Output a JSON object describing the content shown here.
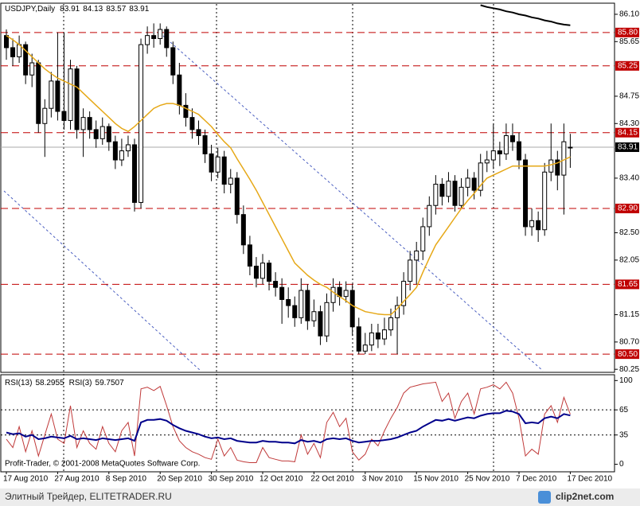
{
  "chart_data": [
    {
      "type": "candlestick",
      "title": "USDJPY,Daily",
      "categories": [
        "17 Aug 2010",
        null,
        null,
        null,
        null,
        null,
        null,
        null,
        "27 Aug 2010",
        null,
        null,
        null,
        null,
        null,
        null,
        null,
        "8 Sep 2010",
        null,
        null,
        null,
        null,
        null,
        null,
        null,
        "20 Sep 2010",
        null,
        null,
        null,
        null,
        null,
        null,
        null,
        "30 Sep 2010",
        null,
        null,
        null,
        null,
        null,
        null,
        null,
        "12 Oct 2010",
        null,
        null,
        null,
        null,
        null,
        null,
        null,
        "22 Oct 2010",
        null,
        null,
        null,
        null,
        null,
        null,
        null,
        "3 Nov 2010",
        null,
        null,
        null,
        null,
        null,
        null,
        null,
        "15 Nov 2010",
        null,
        null,
        null,
        null,
        null,
        null,
        null,
        "25 Nov 2010",
        null,
        null,
        null,
        null,
        null,
        null,
        null,
        "7 Dec 2010",
        null,
        null,
        null,
        null,
        null,
        null,
        null,
        "17 Dec 2010"
      ],
      "ohlc": [
        [
          85.75,
          85.85,
          85.35,
          85.55
        ],
        [
          85.55,
          85.7,
          85.25,
          85.4
        ],
        [
          85.4,
          85.75,
          85.3,
          85.6
        ],
        [
          85.6,
          85.65,
          84.95,
          85.1
        ],
        [
          85.1,
          85.45,
          84.9,
          85.3
        ],
        [
          85.3,
          85.35,
          84.15,
          84.3
        ],
        [
          84.3,
          84.7,
          83.75,
          84.55
        ],
        [
          84.55,
          85.15,
          84.4,
          85.0
        ],
        [
          85.0,
          85.8,
          84.35,
          84.5
        ],
        [
          84.5,
          85.8,
          84.2,
          84.35
        ],
        [
          84.35,
          85.35,
          84.2,
          85.2
        ],
        [
          85.2,
          85.25,
          84.05,
          84.2
        ],
        [
          84.2,
          84.55,
          83.75,
          84.4
        ],
        [
          84.4,
          84.5,
          84.05,
          84.2
        ],
        [
          84.2,
          84.35,
          83.9,
          84.05
        ],
        [
          84.05,
          84.4,
          83.95,
          84.25
        ],
        [
          84.25,
          84.3,
          83.85,
          84.0
        ],
        [
          84.0,
          84.1,
          83.55,
          83.7
        ],
        [
          83.7,
          84.05,
          83.6,
          83.85
        ],
        [
          83.85,
          84.1,
          83.75,
          83.95
        ],
        [
          83.95,
          84.05,
          82.85,
          83.0
        ],
        [
          83.0,
          85.7,
          82.9,
          85.6
        ],
        [
          85.6,
          85.9,
          85.45,
          85.75
        ],
        [
          85.75,
          85.95,
          85.55,
          85.7
        ],
        [
          85.7,
          85.95,
          85.6,
          85.85
        ],
        [
          85.85,
          85.9,
          85.4,
          85.55
        ],
        [
          85.55,
          85.65,
          84.95,
          85.1
        ],
        [
          85.1,
          85.3,
          84.45,
          84.6
        ],
        [
          84.6,
          84.8,
          84.25,
          84.4
        ],
        [
          84.4,
          84.55,
          84.05,
          84.2
        ],
        [
          84.2,
          84.35,
          83.95,
          84.1
        ],
        [
          84.1,
          84.2,
          83.65,
          83.8
        ],
        [
          83.8,
          83.95,
          83.35,
          83.5
        ],
        [
          83.5,
          83.9,
          83.4,
          83.75
        ],
        [
          83.75,
          83.85,
          83.15,
          83.3
        ],
        [
          83.3,
          83.55,
          83.15,
          83.4
        ],
        [
          83.4,
          83.5,
          82.65,
          82.8
        ],
        [
          82.8,
          82.95,
          82.15,
          82.3
        ],
        [
          82.3,
          82.45,
          81.8,
          81.95
        ],
        [
          81.95,
          82.1,
          81.6,
          81.75
        ],
        [
          81.75,
          82.15,
          81.65,
          82.0
        ],
        [
          82.0,
          82.05,
          81.55,
          81.7
        ],
        [
          81.7,
          81.85,
          81.45,
          81.6
        ],
        [
          81.6,
          81.75,
          81.0,
          81.4
        ],
        [
          81.4,
          81.6,
          81.1,
          81.3
        ],
        [
          81.3,
          81.45,
          80.95,
          81.1
        ],
        [
          81.1,
          81.75,
          81.0,
          81.55
        ],
        [
          81.55,
          81.65,
          80.9,
          81.05
        ],
        [
          81.05,
          81.4,
          80.95,
          81.2
        ],
        [
          81.2,
          81.3,
          80.65,
          80.8
        ],
        [
          80.8,
          81.5,
          80.7,
          81.35
        ],
        [
          81.35,
          81.75,
          81.2,
          81.6
        ],
        [
          81.6,
          81.7,
          81.3,
          81.45
        ],
        [
          81.45,
          81.7,
          81.35,
          81.55
        ],
        [
          81.55,
          81.65,
          80.8,
          80.95
        ],
        [
          80.95,
          81.1,
          80.5,
          80.55
        ],
        [
          80.55,
          80.85,
          80.5,
          80.65
        ],
        [
          80.65,
          81.0,
          80.55,
          80.85
        ],
        [
          80.85,
          81.0,
          80.6,
          80.75
        ],
        [
          80.75,
          81.1,
          80.65,
          80.9
        ],
        [
          80.9,
          81.25,
          80.8,
          81.1
        ],
        [
          81.1,
          81.45,
          80.5,
          81.3
        ],
        [
          81.3,
          81.85,
          81.15,
          81.7
        ],
        [
          81.7,
          82.2,
          81.55,
          82.05
        ],
        [
          82.05,
          82.35,
          81.65,
          82.2
        ],
        [
          82.2,
          82.75,
          82.05,
          82.6
        ],
        [
          82.6,
          83.1,
          82.45,
          82.95
        ],
        [
          82.95,
          83.45,
          82.8,
          83.3
        ],
        [
          83.3,
          83.4,
          82.95,
          83.1
        ],
        [
          83.1,
          83.5,
          83.0,
          83.35
        ],
        [
          83.35,
          83.45,
          82.85,
          82.95
        ],
        [
          82.95,
          83.4,
          82.9,
          83.25
        ],
        [
          83.25,
          83.55,
          83.1,
          83.4
        ],
        [
          83.4,
          83.5,
          83.05,
          83.2
        ],
        [
          83.2,
          83.8,
          83.1,
          83.65
        ],
        [
          83.65,
          83.85,
          83.5,
          83.7
        ],
        [
          83.7,
          84.3,
          83.55,
          83.85
        ],
        [
          83.85,
          84.0,
          83.6,
          83.8
        ],
        [
          83.8,
          84.3,
          83.7,
          84.1
        ],
        [
          84.1,
          84.3,
          83.85,
          84.0
        ],
        [
          84.0,
          84.15,
          83.55,
          83.7
        ],
        [
          83.7,
          83.8,
          82.45,
          82.6
        ],
        [
          82.6,
          82.9,
          82.45,
          82.7
        ],
        [
          82.7,
          82.85,
          82.35,
          82.55
        ],
        [
          82.55,
          83.65,
          82.45,
          83.5
        ],
        [
          83.5,
          84.3,
          83.35,
          83.7
        ],
        [
          83.7,
          83.85,
          83.2,
          83.45
        ],
        [
          83.45,
          84.3,
          82.8,
          84.0
        ],
        [
          83.91,
          84.13,
          83.57,
          83.91
        ]
      ],
      "series": [
        {
          "color": "#e6a817",
          "values": [
            85.75,
            85.68,
            85.6,
            85.5,
            85.4,
            85.3,
            85.2,
            85.12,
            85.05,
            85.0,
            84.95,
            84.9,
            84.8,
            84.7,
            84.6,
            84.5,
            84.4,
            84.3,
            84.22,
            84.17,
            84.25,
            84.35,
            84.45,
            84.55,
            84.6,
            84.63,
            84.63,
            84.6,
            84.55,
            84.5,
            84.45,
            84.35,
            84.25,
            84.12,
            84.0,
            83.9,
            83.72,
            83.55,
            83.38,
            83.2,
            83.0,
            82.8,
            82.6,
            82.4,
            82.2,
            82.0,
            81.9,
            81.8,
            81.72,
            81.65,
            81.6,
            81.52,
            81.45,
            81.38,
            81.3,
            81.25,
            81.2,
            81.18,
            81.16,
            81.15,
            81.15,
            81.25,
            81.37,
            81.48,
            81.6,
            81.85,
            82.08,
            82.3,
            82.45,
            82.6,
            82.75,
            82.9,
            83.03,
            83.15,
            83.28,
            83.4,
            83.45,
            83.5,
            83.55,
            83.6,
            83.6,
            83.6,
            83.6,
            83.6,
            83.6,
            83.62,
            83.65,
            83.7,
            83.75
          ]
        },
        {
          "color": "#000000",
          "values": [
            null,
            null,
            null,
            null,
            null,
            null,
            null,
            null,
            null,
            null,
            null,
            null,
            null,
            null,
            null,
            null,
            null,
            null,
            null,
            null,
            null,
            null,
            null,
            null,
            null,
            null,
            null,
            null,
            null,
            null,
            null,
            null,
            null,
            null,
            null,
            null,
            null,
            null,
            null,
            null,
            null,
            null,
            null,
            null,
            null,
            null,
            null,
            null,
            null,
            null,
            null,
            null,
            null,
            null,
            null,
            null,
            null,
            null,
            null,
            null,
            null,
            null,
            null,
            null,
            null,
            null,
            null,
            null,
            null,
            null,
            null,
            null,
            null,
            null,
            86.25,
            86.22,
            86.2,
            86.18,
            86.15,
            86.13,
            86.1,
            86.08,
            86.05,
            86.03,
            86.0,
            85.98,
            85.95,
            85.93,
            85.92
          ]
        }
      ],
      "ylim": [
        80.2,
        86.27
      ],
      "yticks": [
        {
          "value": 86.1,
          "label": "86.10"
        },
        85.65,
        84.75,
        {
          "value": 84.3,
          "label": "84.30"
        },
        {
          "value": 83.4,
          "label": "83.40"
        },
        {
          "value": 82.5,
          "label": "82.50"
        },
        82.05,
        81.15,
        {
          "value": 80.7,
          "label": "80.70"
        },
        80.25
      ],
      "levels": [
        {
          "value": 85.8,
          "label": "85.80"
        },
        85.25,
        84.15,
        {
          "value": 82.9,
          "label": "82.90"
        },
        81.65,
        {
          "value": 80.5,
          "label": "80.50"
        }
      ],
      "level_color": "#c00000"
    },
    {
      "type": "line",
      "series": [
        {
          "name": "RSI(13)",
          "color": "#00008b",
          "values": [
            38,
            36,
            37,
            33,
            35,
            30,
            31,
            33,
            32,
            31,
            34,
            30,
            31,
            30,
            29,
            31,
            30,
            29,
            30,
            31,
            28,
            50,
            53,
            53,
            54,
            52,
            47,
            43,
            40,
            38,
            36,
            33,
            31,
            32,
            30,
            31,
            28,
            27,
            26,
            26,
            28,
            27,
            27,
            26,
            26,
            25,
            29,
            27,
            28,
            26,
            30,
            31,
            30,
            31,
            28,
            26,
            27,
            28,
            28,
            29,
            30,
            32,
            35,
            38,
            40,
            45,
            49,
            53,
            52,
            54,
            52,
            54,
            56,
            55,
            58,
            60,
            61,
            61,
            64,
            63,
            60,
            49,
            50,
            49,
            55,
            57,
            55,
            60,
            58.2955
          ]
        },
        {
          "name": "RSI(3)",
          "color": "#c03a3a",
          "values": [
            30,
            20,
            45,
            15,
            40,
            10,
            35,
            60,
            30,
            25,
            70,
            20,
            40,
            25,
            18,
            45,
            25,
            15,
            40,
            50,
            10,
            90,
            92,
            88,
            93,
            70,
            45,
            28,
            20,
            15,
            12,
            8,
            6,
            30,
            10,
            20,
            5,
            3,
            2,
            2,
            20,
            8,
            6,
            4,
            4,
            3,
            35,
            12,
            25,
            8,
            50,
            62,
            45,
            55,
            15,
            5,
            12,
            30,
            22,
            40,
            55,
            68,
            85,
            92,
            94,
            96,
            97,
            98,
            75,
            85,
            55,
            75,
            85,
            60,
            90,
            92,
            95,
            90,
            98,
            85,
            55,
            10,
            18,
            12,
            60,
            70,
            50,
            80,
            59.7507
          ]
        }
      ],
      "ylim": [
        -8,
        106
      ],
      "yticks": [
        100,
        65,
        35,
        0
      ],
      "levels": [
        65,
        35
      ]
    }
  ],
  "footer": "Profit-Trader, © 2001-2008 MetaQuotes Software Corp.",
  "watermark": "Элитный Трейдер, ELITETRADER.RU",
  "source": "clip2net.com"
}
